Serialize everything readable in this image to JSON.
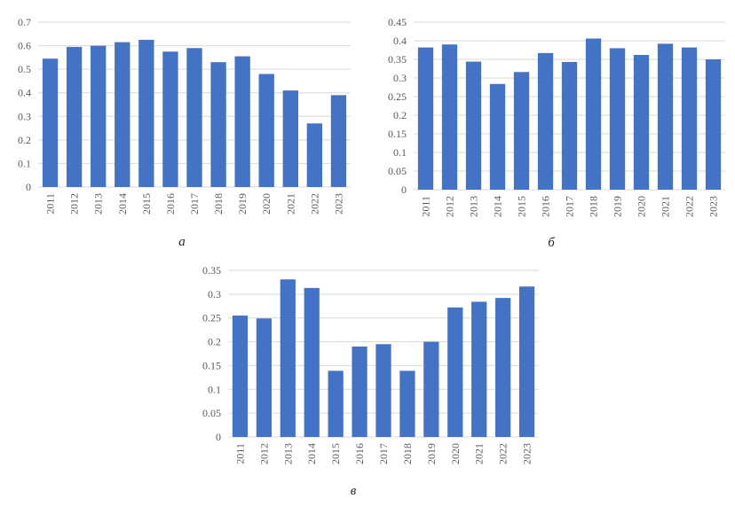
{
  "chart_data": [
    {
      "type": "bar",
      "panel_label": "а",
      "categories": [
        "2011",
        "2012",
        "2013",
        "2014",
        "2015",
        "2016",
        "2017",
        "2018",
        "2019",
        "2020",
        "2021",
        "2022",
        "2023"
      ],
      "values": [
        0.545,
        0.595,
        0.6,
        0.615,
        0.625,
        0.575,
        0.59,
        0.53,
        0.555,
        0.48,
        0.41,
        0.27,
        0.39
      ],
      "ylim": [
        0,
        0.7
      ],
      "yticks": [
        "0",
        "0.1",
        "0.2",
        "0.3",
        "0.4",
        "0.5",
        "0.6",
        "0.7"
      ],
      "grid": true,
      "bar_color": "#4472c4"
    },
    {
      "type": "bar",
      "panel_label": "б",
      "categories": [
        "2011",
        "2012",
        "2013",
        "2014",
        "2015",
        "2016",
        "2017",
        "2018",
        "2019",
        "2020",
        "2021",
        "2022",
        "2023"
      ],
      "values": [
        0.382,
        0.39,
        0.344,
        0.284,
        0.316,
        0.367,
        0.343,
        0.406,
        0.38,
        0.362,
        0.392,
        0.382,
        0.35
      ],
      "ylim": [
        0,
        0.45
      ],
      "yticks": [
        "0",
        "0.05",
        "0.1",
        "0.15",
        "0.2",
        "0.25",
        "0.3",
        "0.35",
        "0.4",
        "0.45"
      ],
      "grid": true,
      "bar_color": "#4472c4"
    },
    {
      "type": "bar",
      "panel_label": "в",
      "categories": [
        "2011",
        "2012",
        "2013",
        "2014",
        "2015",
        "2016",
        "2017",
        "2018",
        "2019",
        "2020",
        "2021",
        "2022",
        "2023"
      ],
      "values": [
        0.255,
        0.249,
        0.331,
        0.313,
        0.139,
        0.19,
        0.195,
        0.139,
        0.2,
        0.272,
        0.284,
        0.292,
        0.316
      ],
      "ylim": [
        0,
        0.35
      ],
      "yticks": [
        "0",
        "0.05",
        "0.1",
        "0.15",
        "0.2",
        "0.25",
        "0.3",
        "0.35"
      ],
      "grid": true,
      "bar_color": "#4472c4"
    }
  ]
}
